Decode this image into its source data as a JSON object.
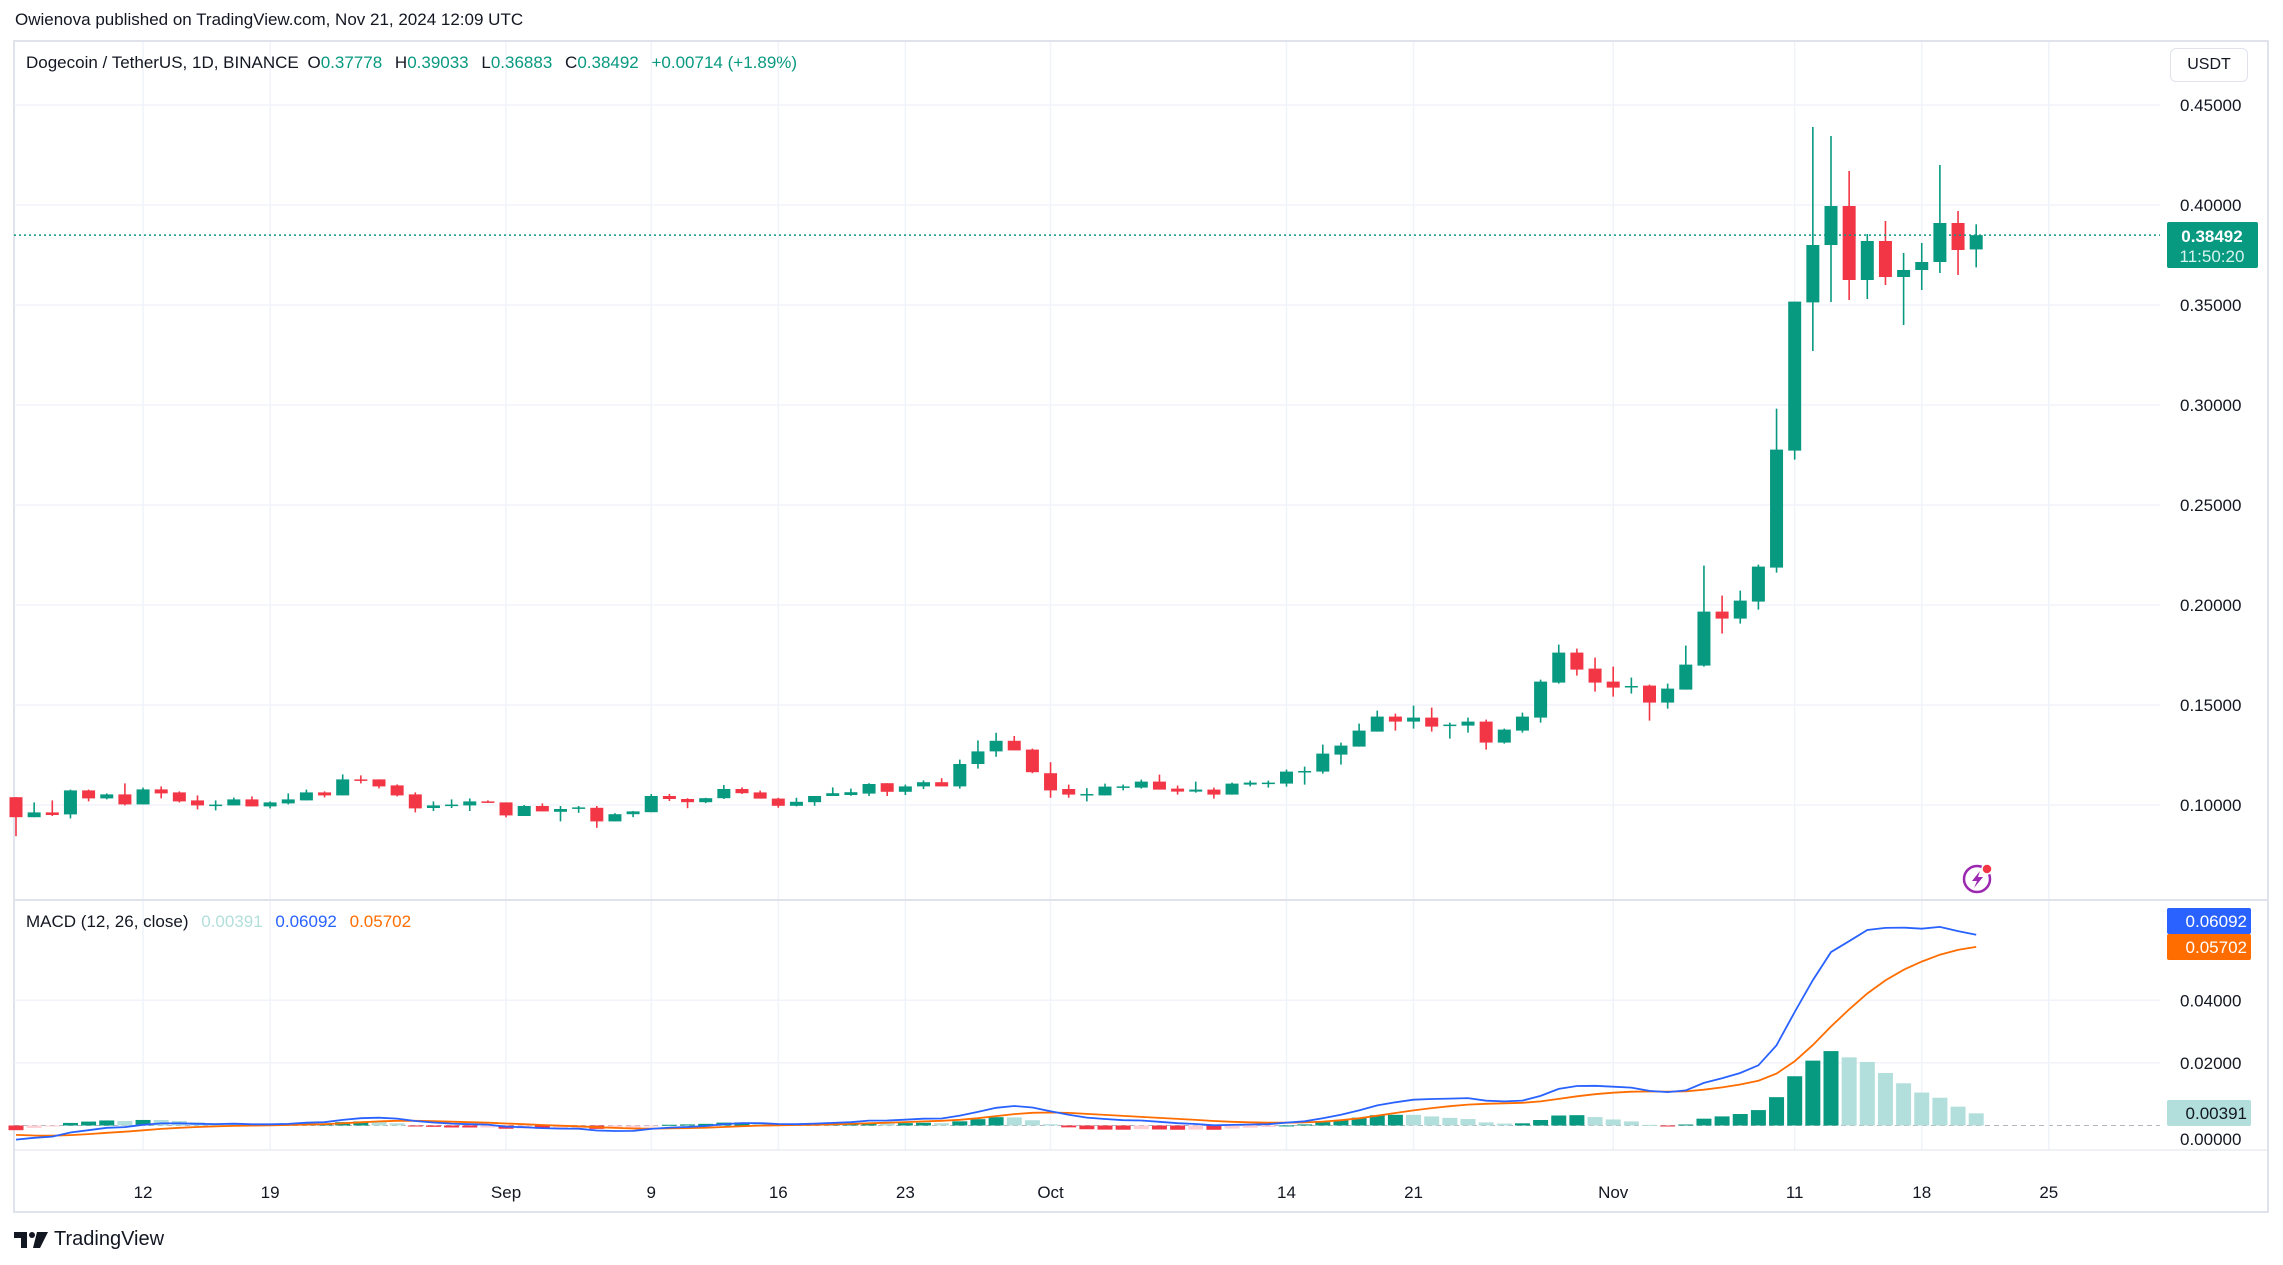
{
  "header": {
    "published": "Owienova published on TradingView.com, Nov 21, 2024 12:09 UTC"
  },
  "legend": {
    "symbol": "Dogecoin / TetherUS, 1D, BINANCE",
    "o_label": "O",
    "o_value": "0.37778",
    "h_label": "H",
    "h_value": "0.39033",
    "l_label": "L",
    "l_value": "0.36883",
    "c_label": "C",
    "c_value": "0.38492",
    "change": "+0.00714 (+1.89%)"
  },
  "currency_button": "USDT",
  "last_price": {
    "value": "0.38492",
    "countdown": "11:50:20"
  },
  "macd_legend": {
    "title": "MACD (12, 26, close)",
    "histogram": "0.00391",
    "macd": "0.06092",
    "signal": "0.05702"
  },
  "footer": {
    "brand": "TradingView"
  },
  "icons": {
    "alert": "lightning-bolt-icon",
    "logo": "tradingview-logo-icon"
  },
  "colors": {
    "up": "#089981",
    "down": "#f23645",
    "macd_line": "#2962ff",
    "signal_line": "#ff6d00",
    "hist_up_strong": "#089981",
    "hist_up_weak": "#b2dfdb",
    "hist_down_strong": "#f23645",
    "hist_down_weak": "#ffcdd2",
    "grid": "#f0f3fa",
    "alert_icon": "#9c27b0"
  },
  "chart_data": [
    {
      "type": "candlestick",
      "title": "Dogecoin / TetherUS, 1D, BINANCE",
      "ylim": [
        0.07,
        0.465
      ],
      "y_ticks": [
        "0.10000",
        "0.15000",
        "0.20000",
        "0.25000",
        "0.30000",
        "0.35000",
        "0.40000",
        "0.45000"
      ],
      "x_ticks": [
        {
          "date": "2024-08-12",
          "label": "12"
        },
        {
          "date": "2024-08-19",
          "label": "19"
        },
        {
          "date": "2024-09-01",
          "label": "Sep"
        },
        {
          "date": "2024-09-09",
          "label": "9"
        },
        {
          "date": "2024-09-16",
          "label": "16"
        },
        {
          "date": "2024-09-23",
          "label": "23"
        },
        {
          "date": "2024-10-01",
          "label": "Oct"
        },
        {
          "date": "2024-10-14",
          "label": "14"
        },
        {
          "date": "2024-10-21",
          "label": "21"
        },
        {
          "date": "2024-11-01",
          "label": "Nov"
        },
        {
          "date": "2024-11-11",
          "label": "11"
        },
        {
          "date": "2024-11-18",
          "label": "18"
        },
        {
          "date": "2024-11-25",
          "label": "25"
        }
      ],
      "grid": true,
      "columns": [
        "date",
        "open",
        "high",
        "low",
        "close"
      ],
      "candles": [
        [
          "2024-08-05",
          0.1039,
          0.104,
          0.0844,
          0.0939
        ],
        [
          "2024-08-06",
          0.0939,
          0.1013,
          0.0939,
          0.0963
        ],
        [
          "2024-08-07",
          0.0963,
          0.1023,
          0.0945,
          0.095
        ],
        [
          "2024-08-08",
          0.0953,
          0.1077,
          0.0933,
          0.1073
        ],
        [
          "2024-08-09",
          0.1073,
          0.1077,
          0.1018,
          0.1033
        ],
        [
          "2024-08-10",
          0.1033,
          0.1058,
          0.1028,
          0.1053
        ],
        [
          "2024-08-11",
          0.1053,
          0.1108,
          0.0998,
          0.1003
        ],
        [
          "2024-08-12",
          0.1003,
          0.1087,
          0.1003,
          0.1078
        ],
        [
          "2024-08-13",
          0.1078,
          0.1093,
          0.1033,
          0.1058
        ],
        [
          "2024-08-14",
          0.1063,
          0.1068,
          0.1013,
          0.1018
        ],
        [
          "2024-08-15",
          0.1023,
          0.1048,
          0.0978,
          0.0998
        ],
        [
          "2024-08-16",
          0.0998,
          0.1023,
          0.0973,
          0.1002
        ],
        [
          "2024-08-17",
          0.0998,
          0.1037,
          0.0998,
          0.1028
        ],
        [
          "2024-08-18",
          0.1028,
          0.1043,
          0.0993,
          0.0993
        ],
        [
          "2024-08-19",
          0.0993,
          0.1018,
          0.0983,
          0.1013
        ],
        [
          "2024-08-20",
          0.1008,
          0.1058,
          0.1003,
          0.1028
        ],
        [
          "2024-08-21",
          0.1023,
          0.1077,
          0.1023,
          0.1063
        ],
        [
          "2024-08-22",
          0.1063,
          0.1068,
          0.1038,
          0.1048
        ],
        [
          "2024-08-23",
          0.1048,
          0.1153,
          0.1048,
          0.1128
        ],
        [
          "2024-08-24",
          0.1128,
          0.1148,
          0.1108,
          0.1125
        ],
        [
          "2024-08-25",
          0.1128,
          0.1128,
          0.1083,
          0.1093
        ],
        [
          "2024-08-26",
          0.1098,
          0.1103,
          0.1043,
          0.1048
        ],
        [
          "2024-08-27",
          0.1053,
          0.1063,
          0.0963,
          0.0983
        ],
        [
          "2024-08-28",
          0.0985,
          0.1018,
          0.097,
          0.0998
        ],
        [
          "2024-08-29",
          0.0995,
          0.1028,
          0.0985,
          0.1002
        ],
        [
          "2024-08-30",
          0.0998,
          0.1033,
          0.097,
          0.1018
        ],
        [
          "2024-08-31",
          0.1018,
          0.1023,
          0.101,
          0.1015
        ],
        [
          "2024-09-01",
          0.1013,
          0.1013,
          0.0938,
          0.0948
        ],
        [
          "2024-09-02",
          0.0945,
          0.1,
          0.0945,
          0.0995
        ],
        [
          "2024-09-03",
          0.0995,
          0.1008,
          0.0968,
          0.0968
        ],
        [
          "2024-09-04",
          0.0966,
          0.0995,
          0.0918,
          0.098
        ],
        [
          "2024-09-05",
          0.0985,
          0.0995,
          0.0961,
          0.0988
        ],
        [
          "2024-09-06",
          0.0986,
          0.0995,
          0.0886,
          0.0918
        ],
        [
          "2024-09-07",
          0.0918,
          0.0959,
          0.0918,
          0.0954
        ],
        [
          "2024-09-08",
          0.0954,
          0.097,
          0.0939,
          0.0968
        ],
        [
          "2024-09-09",
          0.0964,
          0.1055,
          0.0964,
          0.1045
        ],
        [
          "2024-09-10",
          0.1045,
          0.1055,
          0.102,
          0.103
        ],
        [
          "2024-09-11",
          0.103,
          0.1034,
          0.0984,
          0.1014
        ],
        [
          "2024-09-12",
          0.1014,
          0.1036,
          0.1009,
          0.1034
        ],
        [
          "2024-09-13",
          0.1034,
          0.11,
          0.103,
          0.108
        ],
        [
          "2024-09-14",
          0.108,
          0.1088,
          0.1055,
          0.1059
        ],
        [
          "2024-09-15",
          0.1063,
          0.1072,
          0.1032,
          0.1032
        ],
        [
          "2024-09-16",
          0.1032,
          0.1036,
          0.0986,
          0.0996
        ],
        [
          "2024-09-17",
          0.0996,
          0.1036,
          0.0993,
          0.1016
        ],
        [
          "2024-09-18",
          0.1014,
          0.1045,
          0.0996,
          0.1045
        ],
        [
          "2024-09-19",
          0.1045,
          0.1088,
          0.1045,
          0.1059
        ],
        [
          "2024-09-20",
          0.105,
          0.1082,
          0.1046,
          0.1064
        ],
        [
          "2024-09-21",
          0.1057,
          0.1109,
          0.1045,
          0.1105
        ],
        [
          "2024-09-22",
          0.1109,
          0.1109,
          0.1045,
          0.1066
        ],
        [
          "2024-09-23",
          0.1066,
          0.1102,
          0.105,
          0.1093
        ],
        [
          "2024-09-24",
          0.1093,
          0.1123,
          0.108,
          0.1114
        ],
        [
          "2024-09-25",
          0.1114,
          0.1134,
          0.1093,
          0.1093
        ],
        [
          "2024-09-26",
          0.1093,
          0.1227,
          0.1082,
          0.1205
        ],
        [
          "2024-09-27",
          0.1205,
          0.1323,
          0.1182,
          0.1268
        ],
        [
          "2024-09-28",
          0.1268,
          0.1361,
          0.1241,
          0.1321
        ],
        [
          "2024-09-29",
          0.1321,
          0.1345,
          0.1273,
          0.1273
        ],
        [
          "2024-09-30",
          0.1277,
          0.1282,
          0.1159,
          0.1164
        ],
        [
          "2024-10-01",
          0.1159,
          0.1214,
          0.1036,
          0.1073
        ],
        [
          "2024-10-02",
          0.108,
          0.1102,
          0.1036,
          0.1052
        ],
        [
          "2024-10-03",
          0.1052,
          0.1084,
          0.1018,
          0.1055
        ],
        [
          "2024-10-04",
          0.1048,
          0.1107,
          0.1048,
          0.1092
        ],
        [
          "2024-10-05",
          0.109,
          0.1102,
          0.1073,
          0.1093
        ],
        [
          "2024-10-06",
          0.1087,
          0.1127,
          0.1082,
          0.1117
        ],
        [
          "2024-10-07",
          0.1117,
          0.1152,
          0.1077,
          0.1077
        ],
        [
          "2024-10-08",
          0.1082,
          0.1097,
          0.1052,
          0.1067
        ],
        [
          "2024-10-09",
          0.1067,
          0.1117,
          0.1062,
          0.1077
        ],
        [
          "2024-10-10",
          0.1077,
          0.1087,
          0.1032,
          0.1052
        ],
        [
          "2024-10-11",
          0.1052,
          0.1112,
          0.1052,
          0.1107
        ],
        [
          "2024-10-12",
          0.1102,
          0.1122,
          0.1093,
          0.1112
        ],
        [
          "2024-10-13",
          0.111,
          0.1122,
          0.1087,
          0.1112
        ],
        [
          "2024-10-14",
          0.1107,
          0.1177,
          0.1092,
          0.1167
        ],
        [
          "2024-10-15",
          0.1165,
          0.1192,
          0.1102,
          0.117
        ],
        [
          "2024-10-16",
          0.1167,
          0.1302,
          0.1157,
          0.1257
        ],
        [
          "2024-10-17",
          0.1252,
          0.1312,
          0.1202,
          0.1297
        ],
        [
          "2024-10-18",
          0.1292,
          0.1407,
          0.1292,
          0.1372
        ],
        [
          "2024-10-19",
          0.1367,
          0.1472,
          0.1367,
          0.1442
        ],
        [
          "2024-10-20",
          0.1442,
          0.1457,
          0.1372,
          0.1417
        ],
        [
          "2024-10-21",
          0.1417,
          0.1497,
          0.1382,
          0.1437
        ],
        [
          "2024-10-22",
          0.1437,
          0.1487,
          0.1367,
          0.1392
        ],
        [
          "2024-10-23",
          0.14,
          0.1412,
          0.1332,
          0.1402
        ],
        [
          "2024-10-24",
          0.1397,
          0.1437,
          0.1362,
          0.1417
        ],
        [
          "2024-10-25",
          0.1417,
          0.1427,
          0.1277,
          0.1312
        ],
        [
          "2024-10-26",
          0.1312,
          0.1382,
          0.1307,
          0.1377
        ],
        [
          "2024-10-27",
          0.1372,
          0.1462,
          0.1362,
          0.1442
        ],
        [
          "2024-10-28",
          0.1437,
          0.1627,
          0.1412,
          0.1617
        ],
        [
          "2024-10-29",
          0.1612,
          0.1802,
          0.1607,
          0.1762
        ],
        [
          "2024-10-30",
          0.1762,
          0.1782,
          0.1647,
          0.1677
        ],
        [
          "2024-10-31",
          0.1682,
          0.1737,
          0.1567,
          0.1612
        ],
        [
          "2024-11-01",
          0.1617,
          0.1692,
          0.1542,
          0.1587
        ],
        [
          "2024-11-02",
          0.1592,
          0.1637,
          0.1557,
          0.1595
        ],
        [
          "2024-11-03",
          0.1597,
          0.1602,
          0.1422,
          0.1512
        ],
        [
          "2024-11-04",
          0.1512,
          0.1607,
          0.1482,
          0.1582
        ],
        [
          "2024-11-05",
          0.1577,
          0.1797,
          0.1577,
          0.1702
        ],
        [
          "2024-11-06",
          0.1697,
          0.2197,
          0.1692,
          0.1967
        ],
        [
          "2024-11-07",
          0.1967,
          0.2047,
          0.1857,
          0.1932
        ],
        [
          "2024-11-08",
          0.1932,
          0.2072,
          0.1907,
          0.2022
        ],
        [
          "2024-11-09",
          0.2017,
          0.2202,
          0.1977,
          0.2192
        ],
        [
          "2024-11-10",
          0.2187,
          0.2982,
          0.2162,
          0.2777
        ],
        [
          "2024-11-11",
          0.2772,
          0.3517,
          0.2727,
          0.3517
        ],
        [
          "2024-11-12",
          0.3513,
          0.439,
          0.327,
          0.38
        ],
        [
          "2024-11-13",
          0.38,
          0.4345,
          0.3515,
          0.3995
        ],
        [
          "2024-11-14",
          0.3995,
          0.417,
          0.3525,
          0.3625
        ],
        [
          "2024-11-15",
          0.3625,
          0.3855,
          0.353,
          0.382
        ],
        [
          "2024-11-16",
          0.382,
          0.392,
          0.36,
          0.364
        ],
        [
          "2024-11-17",
          0.364,
          0.376,
          0.34,
          0.3675
        ],
        [
          "2024-11-18",
          0.3675,
          0.381,
          0.3575,
          0.3715
        ],
        [
          "2024-11-19",
          0.3715,
          0.42,
          0.366,
          0.391
        ],
        [
          "2024-11-20",
          0.391,
          0.397,
          0.365,
          0.3775
        ],
        [
          "2024-11-21",
          0.37778,
          0.39033,
          0.36883,
          0.38492
        ]
      ],
      "last_price_line": 0.38492
    },
    {
      "type": "line+bar",
      "title": "MACD (12, 26, close)",
      "ylim": [
        -0.0045,
        0.0725
      ],
      "y_ticks": [
        "0.00000",
        "0.02000",
        "0.04000"
      ],
      "last_values": {
        "histogram": 0.00391,
        "macd": 0.06092,
        "signal": 0.05702
      },
      "series": [
        {
          "name": "MACD"
        },
        {
          "name": "Signal"
        },
        {
          "name": "Histogram"
        }
      ]
    }
  ]
}
